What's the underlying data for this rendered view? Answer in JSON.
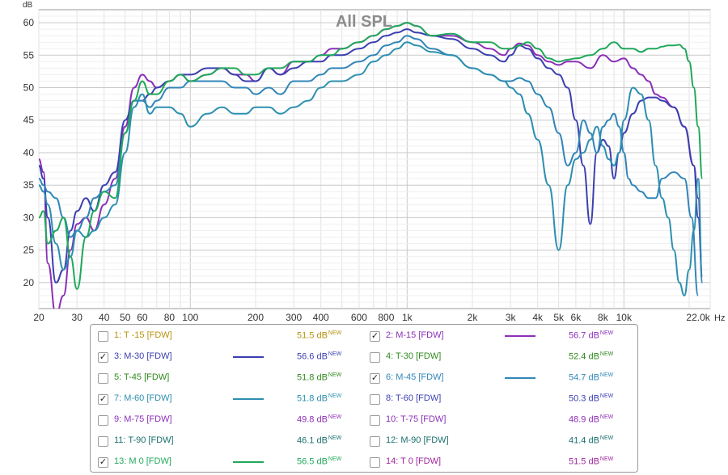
{
  "chart_data": {
    "type": "line",
    "title": "All SPL",
    "ylabel": "dB",
    "xunit": "Hz",
    "xscale": "log",
    "xlim": [
      20,
      25000
    ],
    "ylim": [
      16,
      62
    ],
    "grid": true,
    "x_ticks": [
      {
        "v": 20,
        "label": "20"
      },
      {
        "v": 30,
        "label": "30"
      },
      {
        "v": 40,
        "label": "40"
      },
      {
        "v": 50,
        "label": "50"
      },
      {
        "v": 60,
        "label": "60"
      },
      {
        "v": 80,
        "label": "80"
      },
      {
        "v": 100,
        "label": "100"
      },
      {
        "v": 200,
        "label": "200"
      },
      {
        "v": 300,
        "label": "300"
      },
      {
        "v": 400,
        "label": "400"
      },
      {
        "v": 600,
        "label": "600"
      },
      {
        "v": 800,
        "label": "800"
      },
      {
        "v": 1000,
        "label": "1k"
      },
      {
        "v": 2000,
        "label": "2k"
      },
      {
        "v": 3000,
        "label": "3k"
      },
      {
        "v": 4000,
        "label": "4k"
      },
      {
        "v": 5000,
        "label": "5k"
      },
      {
        "v": 6000,
        "label": "6k"
      },
      {
        "v": 8000,
        "label": "8k"
      },
      {
        "v": 10000,
        "label": "10k"
      },
      {
        "v": 22000,
        "label": "22.0k"
      }
    ],
    "y_ticks": [
      {
        "v": 20,
        "label": "20"
      },
      {
        "v": 25,
        "label": "25"
      },
      {
        "v": 30,
        "label": "30"
      },
      {
        "v": 35,
        "label": "35"
      },
      {
        "v": 40,
        "label": "40"
      },
      {
        "v": 45,
        "label": "45"
      },
      {
        "v": 50,
        "label": "50"
      },
      {
        "v": 55,
        "label": "55"
      },
      {
        "v": 60,
        "label": "60"
      }
    ],
    "series": [
      {
        "name": "2: M-15 [FDW]",
        "color": "#8b2fb8",
        "x": [
          20,
          21,
          22,
          24,
          26,
          28,
          30,
          33,
          36,
          40,
          45,
          50,
          55,
          60,
          65,
          70,
          80,
          90,
          100,
          120,
          140,
          160,
          180,
          200,
          230,
          260,
          300,
          350,
          400,
          450,
          500,
          600,
          700,
          800,
          900,
          1000,
          1100,
          1300,
          1600,
          2000,
          2400,
          2800,
          3000,
          3300,
          3600,
          4000,
          4500,
          5000,
          5500,
          6000,
          7000,
          8000,
          9000,
          10000,
          11000,
          12000,
          13000,
          14000,
          15000,
          17000,
          19000,
          21000,
          22000,
          23000
        ],
        "y": [
          39,
          37,
          23,
          15,
          18,
          25,
          29,
          30,
          28,
          32,
          36,
          44,
          50,
          52,
          51,
          50,
          51,
          52,
          51,
          52,
          53,
          52,
          52,
          51,
          53,
          52,
          54,
          54,
          55,
          56,
          56,
          57,
          58,
          59,
          59.5,
          60,
          59.5,
          58,
          58,
          57,
          56,
          55,
          56,
          56.8,
          56.5,
          55,
          54,
          53.5,
          54,
          54,
          53,
          55,
          54,
          54.5,
          53,
          52,
          51,
          49,
          48.5,
          47,
          44,
          38,
          33,
          20
        ]
      },
      {
        "name": "3: M-30 [FDW]",
        "color": "#3b3fb0",
        "x": [
          20,
          21,
          22,
          24,
          26,
          28,
          30,
          33,
          36,
          40,
          45,
          50,
          55,
          60,
          65,
          70,
          80,
          90,
          100,
          120,
          140,
          160,
          180,
          200,
          230,
          260,
          300,
          350,
          400,
          450,
          500,
          600,
          700,
          800,
          900,
          1000,
          1100,
          1300,
          1600,
          2000,
          2400,
          2800,
          3000,
          3300,
          3600,
          4000,
          4500,
          5000,
          5500,
          6000,
          6500,
          7000,
          7500,
          8000,
          8500,
          9000,
          9500,
          10000,
          11000,
          12000,
          13000,
          14000,
          15000,
          17000,
          19000,
          21000,
          22000,
          23000
        ],
        "y": [
          38,
          36,
          30,
          20,
          22,
          28,
          31,
          33,
          31,
          35,
          37,
          45,
          48,
          48,
          49,
          50,
          51,
          52,
          52,
          53,
          53,
          52,
          51,
          51,
          53,
          52,
          53,
          54,
          54,
          55,
          55,
          56,
          57,
          58,
          58.5,
          59,
          58.5,
          58,
          57.5,
          56,
          55,
          54,
          55,
          56.5,
          56,
          54.5,
          53,
          52,
          50,
          45,
          38,
          29,
          40,
          42,
          41,
          36,
          40,
          43,
          46,
          48,
          48.5,
          48.5,
          48,
          47,
          44,
          38,
          30,
          21
        ]
      },
      {
        "name": "6: M-45 [FDW]",
        "color": "#3186b8",
        "x": [
          20,
          21,
          22,
          24,
          26,
          28,
          30,
          33,
          36,
          40,
          45,
          50,
          55,
          60,
          65,
          70,
          80,
          90,
          100,
          120,
          140,
          160,
          180,
          200,
          230,
          260,
          300,
          350,
          400,
          450,
          500,
          600,
          700,
          800,
          900,
          1000,
          1100,
          1300,
          1600,
          2000,
          2400,
          2800,
          3000,
          3300,
          3600,
          4000,
          4500,
          5000,
          5500,
          6000,
          6500,
          7000,
          7500,
          8000,
          8500,
          9000,
          9500,
          10000,
          10500,
          11000,
          12000,
          13000,
          14000,
          15000,
          17000,
          19000,
          20500,
          22000
        ],
        "y": [
          36,
          35,
          34,
          33,
          30,
          27,
          28,
          30,
          33,
          34,
          35,
          43,
          48,
          48,
          47,
          48,
          50,
          50,
          51,
          51,
          51,
          50,
          50,
          49,
          50,
          49,
          51,
          51,
          52,
          53,
          53,
          54,
          55,
          56.5,
          57,
          58,
          57.5,
          56,
          55,
          53,
          52,
          51,
          51,
          51.5,
          51,
          49,
          47,
          43,
          38,
          40,
          45,
          43,
          40,
          44,
          45,
          46,
          44,
          40,
          36,
          35,
          34,
          33,
          33,
          36,
          37,
          36,
          30,
          18
        ]
      },
      {
        "name": "7: M-60 [FDW]",
        "color": "#2d8fb0",
        "x": [
          20,
          21,
          22,
          24,
          26,
          28,
          30,
          33,
          36,
          40,
          45,
          50,
          55,
          60,
          65,
          70,
          80,
          90,
          100,
          120,
          140,
          160,
          180,
          200,
          230,
          260,
          300,
          350,
          400,
          450,
          500,
          600,
          700,
          800,
          900,
          1000,
          1100,
          1300,
          1600,
          2000,
          2400,
          2800,
          3000,
          3300,
          3600,
          4000,
          4500,
          5000,
          5500,
          6000,
          6500,
          7000,
          7500,
          8000,
          8500,
          9000,
          9500,
          10000,
          11000,
          12000,
          13000,
          14000,
          15000,
          16000,
          17000,
          18000,
          19000,
          20000,
          21000,
          22000,
          23000
        ],
        "y": [
          35,
          34,
          32,
          26,
          22,
          24,
          28,
          27,
          28,
          30,
          32,
          40,
          47,
          49,
          46,
          47,
          47,
          46,
          44,
          46,
          47,
          46,
          46,
          47,
          47,
          46,
          47,
          48,
          50,
          51,
          51,
          52,
          54,
          55,
          56,
          57,
          56.5,
          55.5,
          55,
          53,
          52,
          51,
          50,
          49,
          46,
          42,
          35,
          25,
          35,
          39,
          40,
          42,
          44,
          41,
          39,
          38,
          40,
          45,
          50,
          49,
          45,
          38,
          33,
          30,
          25,
          20,
          18,
          22,
          28,
          36,
          20
        ]
      },
      {
        "name": "13: M 0 [FDW]",
        "color": "#1fa85a",
        "x": [
          20,
          21,
          22,
          24,
          26,
          28,
          30,
          33,
          36,
          40,
          45,
          50,
          55,
          60,
          65,
          70,
          80,
          90,
          100,
          120,
          140,
          160,
          180,
          200,
          230,
          260,
          300,
          350,
          400,
          450,
          500,
          600,
          700,
          800,
          900,
          1000,
          1100,
          1300,
          1600,
          2000,
          2400,
          2800,
          3000,
          3300,
          3600,
          4000,
          4500,
          5000,
          5500,
          6000,
          7000,
          8000,
          9000,
          10000,
          11000,
          12000,
          13000,
          14000,
          15000,
          16000,
          17000,
          18000,
          19000,
          20000,
          21000,
          22000,
          23000
        ],
        "y": [
          30,
          31,
          26,
          28,
          30,
          24,
          19,
          27,
          31,
          34,
          33,
          43,
          48,
          51,
          49,
          49,
          51,
          52,
          51,
          52,
          53,
          53,
          52,
          52,
          53,
          53,
          54,
          54,
          55,
          55,
          56,
          57,
          58,
          59,
          59.5,
          60,
          59.5,
          58,
          58.3,
          57,
          57,
          56,
          56,
          56.5,
          57,
          56,
          54.5,
          54,
          54.3,
          54.5,
          55,
          56,
          57,
          56,
          56,
          55.5,
          56,
          56,
          56.3,
          56.5,
          56.5,
          56.6,
          56,
          54,
          50,
          44,
          36
        ]
      }
    ]
  },
  "legend": {
    "items": [
      {
        "label": "1: T -15 [FDW]",
        "value": "51.5 dB",
        "new": "NEW",
        "checked": false,
        "color": "#b7910f"
      },
      {
        "label": "2: M-15 [FDW]",
        "value": "56.7 dB",
        "new": "NEW",
        "checked": true,
        "color": "#8b2fb8"
      },
      {
        "label": "3: M-30 [FDW]",
        "value": "56.6 dB",
        "new": "NEW",
        "checked": true,
        "color": "#3b3fb0"
      },
      {
        "label": "4: T-30 [FDW]",
        "value": "52.4 dB",
        "new": "NEW",
        "checked": false,
        "color": "#2e8a1c"
      },
      {
        "label": "5: T-45 [FDW]",
        "value": "51.8 dB",
        "new": "NEW",
        "checked": false,
        "color": "#2e8a1c"
      },
      {
        "label": "6: M-45 [FDW]",
        "value": "54.7 dB",
        "new": "NEW",
        "checked": true,
        "color": "#3186b8"
      },
      {
        "label": "7: M-60 [FDW]",
        "value": "51.8 dB",
        "new": "NEW",
        "checked": true,
        "color": "#2d8fb0"
      },
      {
        "label": "8: T-60 [FDW]",
        "value": "50.3 dB",
        "new": "NEW",
        "checked": false,
        "color": "#3b3fb0"
      },
      {
        "label": "9: M-75 [FDW]",
        "value": "49.8 dB",
        "new": "NEW",
        "checked": false,
        "color": "#8b2fb8"
      },
      {
        "label": "10: T-75 [FDW]",
        "value": "48.9 dB",
        "new": "NEW",
        "checked": false,
        "color": "#8b2fb8"
      },
      {
        "label": "11: T-90 [FDW]",
        "value": "46.1 dB",
        "new": "NEW",
        "checked": false,
        "color": "#1a6f6f"
      },
      {
        "label": "12: M-90 [FDW]",
        "value": "41.4 dB",
        "new": "NEW",
        "checked": false,
        "color": "#1a6f6f"
      },
      {
        "label": "13: M 0 [FDW]",
        "value": "56.5 dB",
        "new": "NEW",
        "checked": true,
        "color": "#1fa85a"
      },
      {
        "label": "14: T 0 [FDW]",
        "value": "51.5 dB",
        "new": "NEW",
        "checked": false,
        "color": "#a0249e"
      }
    ]
  }
}
